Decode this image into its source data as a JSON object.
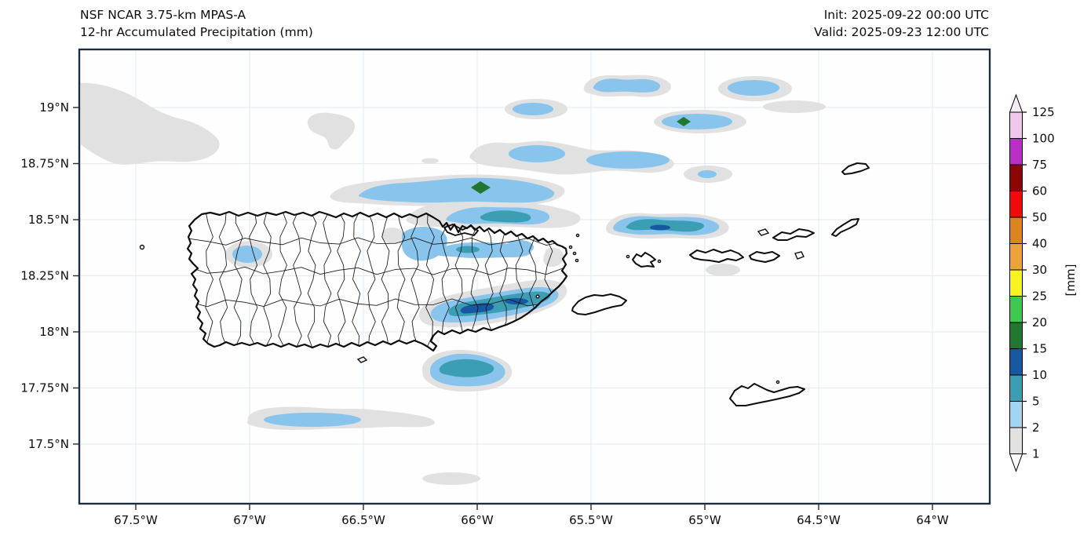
{
  "header": {
    "title_line1": "NSF NCAR 3.75-km MPAS-A",
    "title_line2": "12-hr Accumulated Precipitation (mm)",
    "init_label": "Init: 2025-09-22 00:00 UTC",
    "valid_label": "Valid: 2025-09-23 12:00 UTC"
  },
  "axes": {
    "lat_labels": [
      "19°N",
      "18.75°N",
      "18.5°N",
      "18.25°N",
      "18°N",
      "17.75°N",
      "17.5°N"
    ],
    "lon_labels": [
      "67.5°W",
      "67°W",
      "66.5°W",
      "66°W",
      "65.5°W",
      "65°W",
      "64.5°W",
      "64°W"
    ]
  },
  "colorbar": {
    "tick_labels": [
      "125",
      "100",
      "75",
      "60",
      "50",
      "40",
      "30",
      "25",
      "20",
      "15",
      "10",
      "5",
      "2",
      "1"
    ],
    "unit_label": "[mm]"
  },
  "palette": {
    "grid": "#e3e9ef",
    "frame": "#1d2d3e",
    "coastline": "#0d0d0d",
    "level_1_2": "#e1e1e1",
    "level_2_5": "#a3d5f3",
    "level_5_10": "#3c9eb2",
    "level_10_15": "#1659a2",
    "level_15_20": "#207830",
    "level_20_25": "#3ec850",
    "level_25_30": "#f6f320",
    "level_30_40": "#eda33c",
    "level_40_50": "#dc851f",
    "level_50_60": "#f00a0a",
    "level_60_75": "#8c0606",
    "level_75_100": "#b92fc6",
    "level_100_125": "#eec9ec",
    "over_125": "#f8ecf9",
    "under_1": "#ffffff"
  },
  "chart_data": {
    "type": "heatmap",
    "title": "NSF NCAR 3.75-km MPAS-A",
    "subtitle": "12-hr Accumulated Precipitation (mm)",
    "init_time": "2025-09-22 00:00 UTC",
    "valid_time": "2025-09-23 12:00 UTC",
    "units": "mm",
    "grid": true,
    "colorbar_position": "right",
    "x_tick_labels": [
      "67.5°W",
      "67°W",
      "66.5°W",
      "66°W",
      "65.5°W",
      "65°W",
      "64.5°W",
      "64°W"
    ],
    "y_tick_labels": [
      "19°N",
      "18.75°N",
      "18.5°N",
      "18.25°N",
      "18°N",
      "17.75°N",
      "17.5°N"
    ],
    "extent": {
      "lon_west": -67.75,
      "lon_east": -63.75,
      "lat_south": 17.23,
      "lat_north": 19.26
    },
    "colorbar_levels_mm": [
      1,
      2,
      5,
      10,
      15,
      20,
      25,
      30,
      40,
      50,
      60,
      75,
      100,
      125
    ],
    "colorbar_colors": [
      "#e1e1e1",
      "#a3d5f3",
      "#3c9eb2",
      "#1659a2",
      "#207830",
      "#3ec850",
      "#f6f320",
      "#eda33c",
      "#dc851f",
      "#f00a0a",
      "#8c0606",
      "#b92fc6",
      "#eec9ec"
    ],
    "under_color": "#ffffff",
    "over_color": "#f8ecf9",
    "features": [
      {
        "name": "gray-patch-offshore-northwest",
        "lon": -67.6,
        "lat": 18.95,
        "max_mm": 2
      },
      {
        "name": "gray-patch-north-central",
        "lon": -66.63,
        "lat": 18.92,
        "max_mm": 2
      },
      {
        "name": "rain-cell-north-1",
        "lon": -65.74,
        "lat": 18.99,
        "max_mm": 5
      },
      {
        "name": "rain-cell-north-2",
        "lon": -65.34,
        "lat": 19.09,
        "max_mm": 5
      },
      {
        "name": "rain-cell-north-3",
        "lon": -64.78,
        "lat": 19.08,
        "max_mm": 5
      },
      {
        "name": "rain-cell-north-4-green-core",
        "lon": -65.09,
        "lat": 18.94,
        "max_mm": 20
      },
      {
        "name": "gray-streak-northeast",
        "lon": -64.6,
        "lat": 18.96,
        "max_mm": 2
      },
      {
        "name": "rain-band-18.8N",
        "lon": -65.5,
        "lat": 18.78,
        "max_mm": 5
      },
      {
        "name": "rain-cell-small-east",
        "lon": -64.99,
        "lat": 18.7,
        "max_mm": 5
      },
      {
        "name": "rain-band-18.65N-green-core",
        "lon": -66.0,
        "lat": 18.64,
        "max_mm": 20
      },
      {
        "name": "rain-band-north-coast-offshore",
        "lon": -65.9,
        "lat": 18.51,
        "max_mm": 10
      },
      {
        "name": "rain-band-north-coast-onshore",
        "lon": -66.05,
        "lat": 18.38,
        "max_mm": 10
      },
      {
        "name": "rain-spot-northwest-interior",
        "lon": -67.0,
        "lat": 18.35,
        "max_mm": 5
      },
      {
        "name": "rain-cell-east-of-puerto-rico",
        "lon": -65.2,
        "lat": 18.47,
        "max_mm": 15
      },
      {
        "name": "rain-band-southeast",
        "lon": -65.9,
        "lat": 18.12,
        "max_mm": 15
      },
      {
        "name": "rain-cell-south-coast",
        "lon": -66.05,
        "lat": 17.84,
        "max_mm": 10
      },
      {
        "name": "rain-streak-southwest",
        "lon": -66.72,
        "lat": 17.62,
        "max_mm": 5
      },
      {
        "name": "gray-patch-far-south",
        "lon": -66.1,
        "lat": 17.35,
        "max_mm": 2
      },
      {
        "name": "gray-patch-virgin-islands",
        "lon": -64.92,
        "lat": 18.28,
        "max_mm": 2
      }
    ]
  }
}
